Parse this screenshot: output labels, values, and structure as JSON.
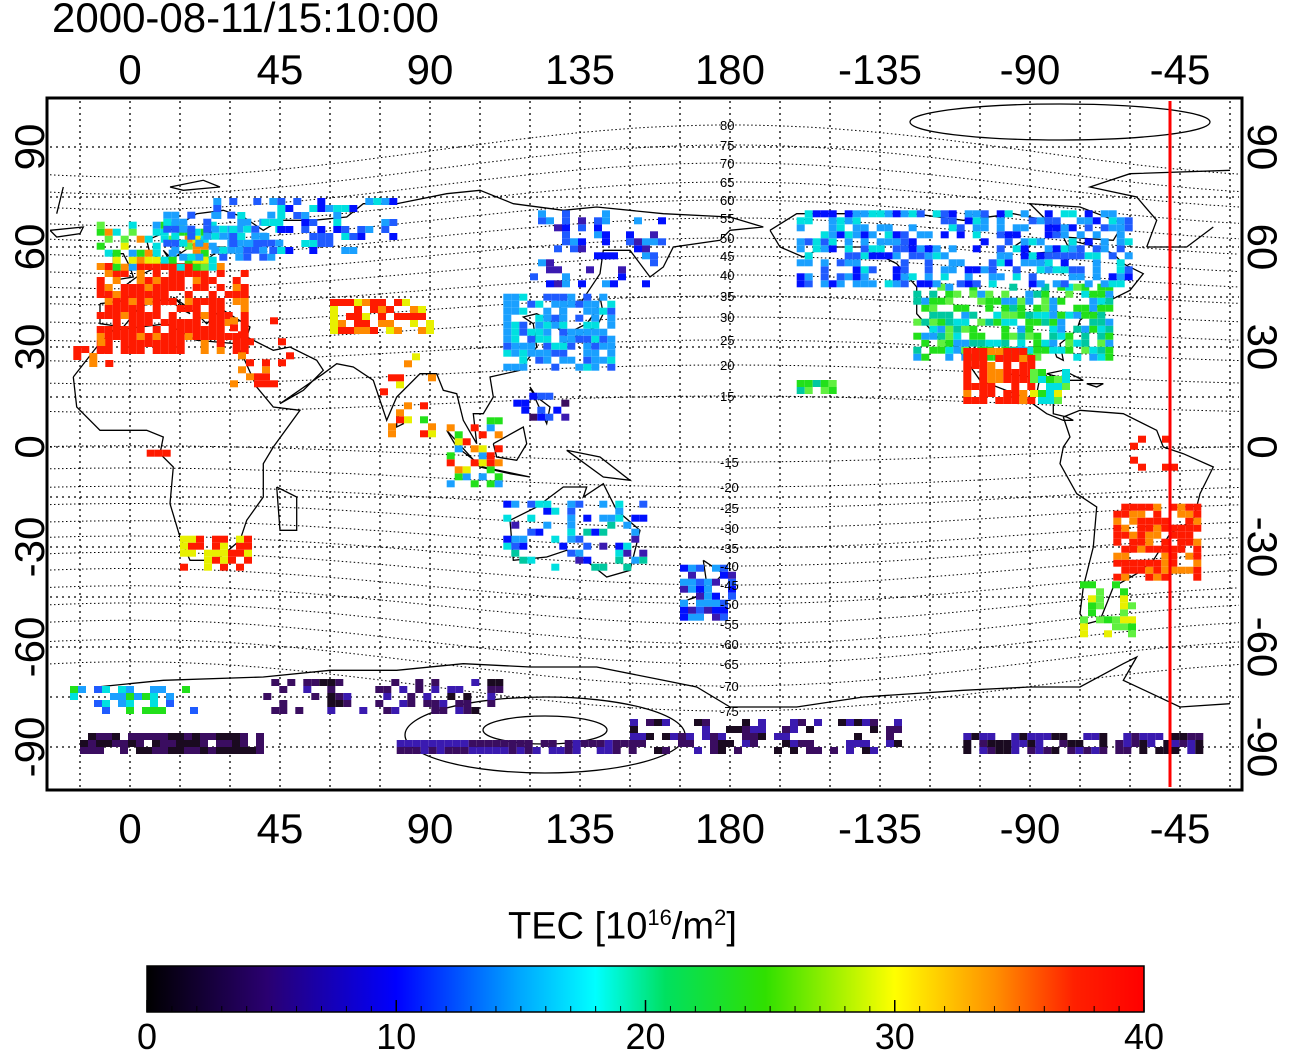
{
  "timestamp": "2000-08-11/15:10:00",
  "map": {
    "top_lon_labels": [
      "0",
      "45",
      "90",
      "135",
      "180",
      "-135",
      "-90",
      "-45"
    ],
    "bottom_lon_labels": [
      "0",
      "45",
      "90",
      "135",
      "180",
      "-135",
      "-90",
      "-45"
    ],
    "lat_labels": [
      "90",
      "60",
      "30",
      "0",
      "-30",
      "-60",
      "-90"
    ],
    "lon_range": [
      -25,
      335
    ],
    "lat_range": [
      -95,
      95
    ],
    "grid": "dotted, 15 degree spacing",
    "terminator_line": {
      "color": "#ff0000",
      "lon": -48
    },
    "magnetic_latitude_labels": [
      "80",
      "75",
      "70",
      "65",
      "60",
      "55",
      "50",
      "45",
      "40",
      "35",
      "30",
      "25",
      "20",
      "15",
      "-15",
      "-20",
      "-25",
      "-30",
      "-35",
      "-40",
      "-45",
      "-50",
      "-55",
      "-60",
      "-65",
      "-70",
      "-75"
    ],
    "colors": {
      "high_tec": "#ff1a00",
      "mid_tec": "#22e01a",
      "low_tec": "#1f6bff",
      "very_low_tec": "#3a0d60"
    }
  },
  "colorbar": {
    "title_prefix": "TEC  [10",
    "title_exp1": "16",
    "title_mid": "/m",
    "title_exp2": "2",
    "title_suffix": "]",
    "ticks": [
      "0",
      "10",
      "20",
      "30",
      "40"
    ],
    "range": [
      0,
      40
    ],
    "colormap": "rainbow"
  }
}
